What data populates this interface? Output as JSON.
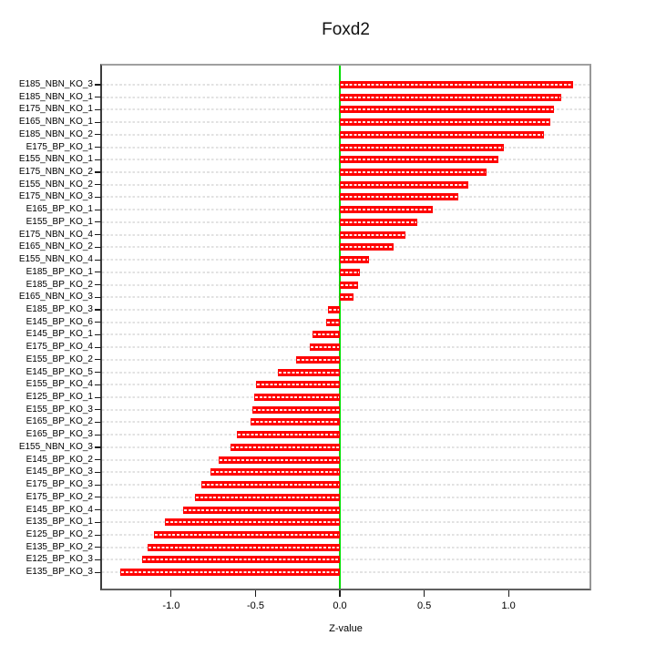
{
  "chart_data": {
    "type": "bar",
    "orientation": "horizontal",
    "title": "Foxd2",
    "xlabel": "Z-value",
    "categories": [
      "E185_NBN_KO_3",
      "E185_NBN_KO_1",
      "E175_NBN_KO_1",
      "E165_NBN_KO_1",
      "E185_NBN_KO_2",
      "E175_BP_KO_1",
      "E155_NBN_KO_1",
      "E175_NBN_KO_2",
      "E155_NBN_KO_2",
      "E175_NBN_KO_3",
      "E165_BP_KO_1",
      "E155_BP_KO_1",
      "E175_NBN_KO_4",
      "E165_NBN_KO_2",
      "E155_NBN_KO_4",
      "E185_BP_KO_1",
      "E185_BP_KO_2",
      "E165_NBN_KO_3",
      "E185_BP_KO_3",
      "E145_BP_KO_6",
      "E145_BP_KO_1",
      "E175_BP_KO_4",
      "E155_BP_KO_2",
      "E145_BP_KO_5",
      "E155_BP_KO_4",
      "E125_BP_KO_1",
      "E155_BP_KO_3",
      "E165_BP_KO_2",
      "E165_BP_KO_3",
      "E155_NBN_KO_3",
      "E145_BP_KO_2",
      "E145_BP_KO_3",
      "E175_BP_KO_3",
      "E175_BP_KO_2",
      "E145_BP_KO_4",
      "E135_BP_KO_1",
      "E125_BP_KO_2",
      "E135_BP_KO_2",
      "E125_BP_KO_3",
      "E135_BP_KO_3"
    ],
    "values": [
      1.38,
      1.31,
      1.27,
      1.25,
      1.21,
      0.97,
      0.94,
      0.87,
      0.76,
      0.7,
      0.55,
      0.46,
      0.39,
      0.32,
      0.17,
      0.12,
      0.11,
      0.08,
      -0.07,
      -0.08,
      -0.16,
      -0.18,
      -0.26,
      -0.37,
      -0.5,
      -0.51,
      -0.52,
      -0.53,
      -0.61,
      -0.65,
      -0.72,
      -0.77,
      -0.82,
      -0.86,
      -0.93,
      -1.04,
      -1.1,
      -1.14,
      -1.17,
      -1.3
    ],
    "xlim": [
      -1.41,
      1.48
    ],
    "x_ticks": [
      -1.0,
      -0.5,
      0.0,
      0.5,
      1.0
    ],
    "x_tick_labels": [
      "-1.0",
      "-0.5",
      "0.0",
      "0.5",
      "1.0"
    ],
    "grid": true,
    "zero_line": true,
    "legend": "none",
    "colors": {
      "bar": "#ff0000",
      "bar_stripe": "#ffffff",
      "zero_line": "#00dd00",
      "grid": "#e2e2e2",
      "axis_text": "#000000",
      "tick": "#1a1a1a"
    }
  }
}
